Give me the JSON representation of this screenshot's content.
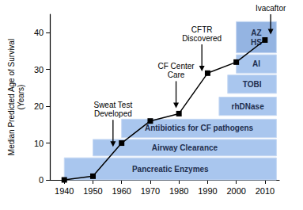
{
  "chart_data": {
    "type": "line",
    "x": [
      1940,
      1950,
      1960,
      1970,
      1980,
      1990,
      2000,
      2010
    ],
    "values": [
      0,
      1,
      10,
      16,
      18,
      29,
      32,
      38
    ],
    "color": "#000000",
    "marker": "square",
    "xlim": [
      1935,
      2015
    ],
    "xticks": [
      1940,
      1950,
      1960,
      1970,
      1980,
      1990,
      2000,
      2010
    ],
    "ylim": [
      0,
      45
    ],
    "yticks": [
      0,
      10,
      20,
      30,
      40
    ],
    "y_label": "Median Predicted Age of Survival\n(Years)",
    "grid": false,
    "bands": [
      {
        "label": "Pancreatic Enzymes",
        "start": 1940,
        "end": 2014,
        "bottom": 0,
        "top": 6,
        "color": "#a9c6ee"
      },
      {
        "label": "Airway Clearance",
        "start": 1950,
        "end": 2014,
        "bottom": 6.5,
        "top": 11,
        "color": "#a9c6ee"
      },
      {
        "label": "Antibiotics for CF pathogens",
        "start": 1960,
        "end": 2014,
        "bottom": 11.5,
        "top": 16.5,
        "color": "#a9c6ee"
      },
      {
        "label": "rhDNase",
        "start": 1994,
        "end": 2014,
        "bottom": 17.5,
        "top": 22.5,
        "color": "#a9c6ee"
      },
      {
        "label": "TOBI",
        "start": 1997,
        "end": 2014,
        "bottom": 23.5,
        "top": 28.5,
        "color": "#a9c6ee"
      },
      {
        "label": "AI",
        "start": 2000,
        "end": 2014,
        "bottom": 29,
        "top": 34,
        "color": "#a9c6ee"
      },
      {
        "label": "AZ\nHS",
        "start": 2000,
        "end": 2014,
        "bottom": 34.5,
        "top": 43,
        "color": "#94b4e2"
      }
    ],
    "annotations": [
      {
        "text": "Sweat Test\nDeveloped",
        "x": 1957,
        "y": 9
      },
      {
        "text": "CF Center\nCare",
        "x": 1979,
        "y": 19.5
      },
      {
        "text": "CFTR\nDiscovered",
        "x": 1988,
        "y": 29.5
      },
      {
        "text": "Ivacaftor",
        "x": 2012,
        "y": 39.5
      }
    ]
  }
}
